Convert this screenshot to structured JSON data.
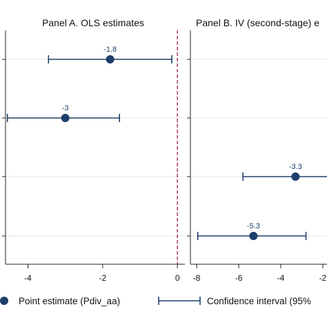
{
  "chart_data": [
    {
      "type": "scatter",
      "title": "Panel A. OLS estimates",
      "xlim": [
        -4.6,
        0.2
      ],
      "xticks": [
        -4,
        -2,
        0
      ],
      "tick_labels": [
        "-4",
        "-2",
        "0"
      ],
      "reference_line": 0,
      "grid": true,
      "rows": 4,
      "points": [
        {
          "row": 0,
          "estimate": -1.8,
          "ci": [
            -3.45,
            -0.15
          ],
          "label": "-1.8"
        },
        {
          "row": 1,
          "estimate": -3.0,
          "ci": [
            -4.55,
            -1.55
          ],
          "label": "-3"
        }
      ]
    },
    {
      "type": "scatter",
      "title": "Panel B. IV (second-stage) e",
      "xlim": [
        -8.3,
        -1.8
      ],
      "xticks": [
        -8,
        -6,
        -4,
        -2
      ],
      "tick_labels": [
        "-8",
        "-6",
        "-4",
        "-2"
      ],
      "grid": true,
      "rows": 4,
      "points": [
        {
          "row": 2,
          "estimate": -3.3,
          "ci": [
            -5.8,
            -1.5
          ],
          "label": "-3.3"
        },
        {
          "row": 3,
          "estimate": -5.3,
          "ci": [
            -7.95,
            -2.8
          ],
          "label": "-5.3"
        }
      ]
    }
  ],
  "legend": {
    "placement": "bottom",
    "items": [
      {
        "label": "Point estimate (Pdiv_aa)",
        "symbol": "marker"
      },
      {
        "label": "Confidence interval (95%",
        "symbol": "ci"
      }
    ]
  },
  "colors": {
    "marker": "#1d3f6b",
    "ci": "#1d3f6b",
    "reference_line": "#b03a5b",
    "grid": "#e4e4e4",
    "axis": "#222222"
  }
}
